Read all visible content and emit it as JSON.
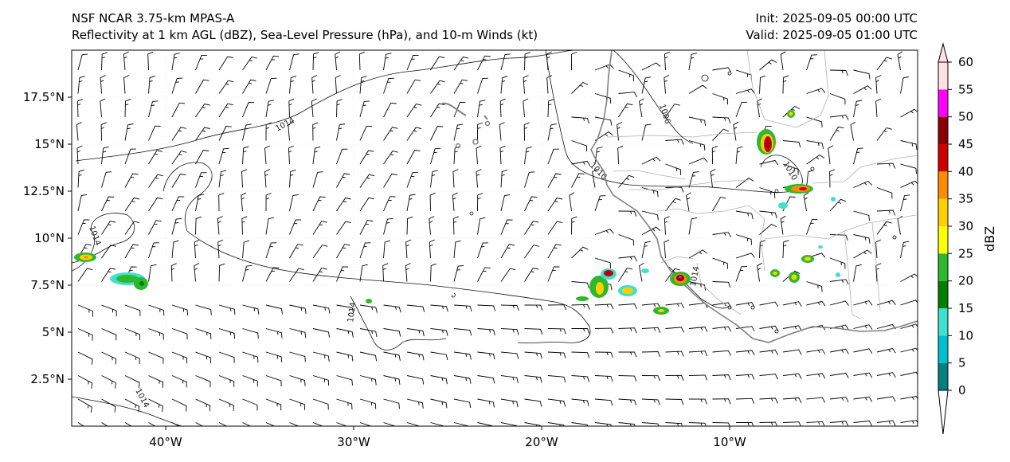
{
  "header": {
    "model": "NSF NCAR 3.75-km MPAS-A",
    "fields": "Reflectivity at 1 km AGL (dBZ), Sea-Level Pressure (hPa), and 10-m Winds (kt)",
    "init": "Init: 2025-09-05 00:00 UTC",
    "valid": "Valid: 2025-09-05 01:00 UTC"
  },
  "map": {
    "region": "West Africa / eastern tropical Atlantic",
    "lon_range": [
      -45,
      0
    ],
    "lat_range": [
      0,
      20
    ],
    "x_tick_labels": [
      "40°W",
      "30°W",
      "20°W",
      "10°W"
    ],
    "y_tick_labels": [
      "17.5°N",
      "15°N",
      "12.5°N",
      "10°N",
      "7.5°N",
      "5°N",
      "2.5°N"
    ],
    "isobar_labels": [
      "1014",
      "1014",
      "1014",
      "1014",
      "1014",
      "1010",
      "1010",
      "1006"
    ],
    "coastline_color": "#808080",
    "border_color": "#b0b0b0",
    "isobar_color": "#000000",
    "wind_barb_color": "#000000"
  },
  "colorbar": {
    "label": "dBZ",
    "tick_labels": [
      "0",
      "5",
      "10",
      "15",
      "20",
      "25",
      "30",
      "35",
      "40",
      "45",
      "50",
      "55",
      "60"
    ],
    "colors": [
      "#008080",
      "#00c0d0",
      "#40e0d0",
      "#008000",
      "#2eb82e",
      "#ffff00",
      "#ffd000",
      "#ff8c00",
      "#d00000",
      "#8b0000",
      "#ff00ff",
      "#ffe0e6"
    ]
  }
}
